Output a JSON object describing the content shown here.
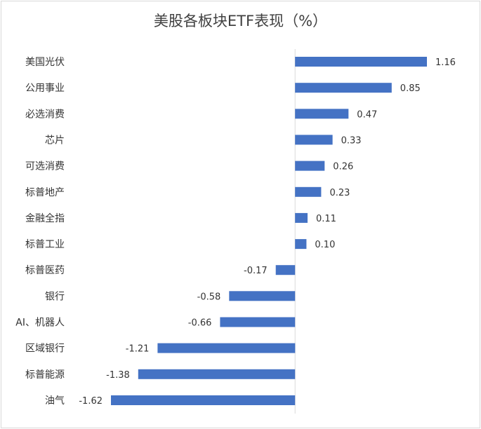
{
  "chart_data": {
    "type": "bar",
    "orientation": "horizontal",
    "title": "美股各板块ETF表现（%）",
    "xlabel": "",
    "ylabel": "",
    "grid": false,
    "legend": "none",
    "bar_color": "#4472C4",
    "xlim": [
      -1.62,
      1.16
    ],
    "categories": [
      "美国光伏",
      "公用事业",
      "必选消费",
      "芯片",
      "可选消费",
      "标普地产",
      "金融全指",
      "标普工业",
      "标普医药",
      "银行",
      "AI、机器人",
      "区域银行",
      "标普能源",
      "油气"
    ],
    "values": [
      1.16,
      0.85,
      0.47,
      0.33,
      0.26,
      0.23,
      0.11,
      0.1,
      -0.17,
      -0.58,
      -0.66,
      -1.21,
      -1.38,
      -1.62
    ],
    "value_labels": [
      "1.16",
      "0.85",
      "0.47",
      "0.33",
      "0.26",
      "0.23",
      "0.11",
      "0.10",
      "-0.17",
      "-0.58",
      "-0.66",
      "-1.21",
      "-1.38",
      "-1.62"
    ]
  }
}
